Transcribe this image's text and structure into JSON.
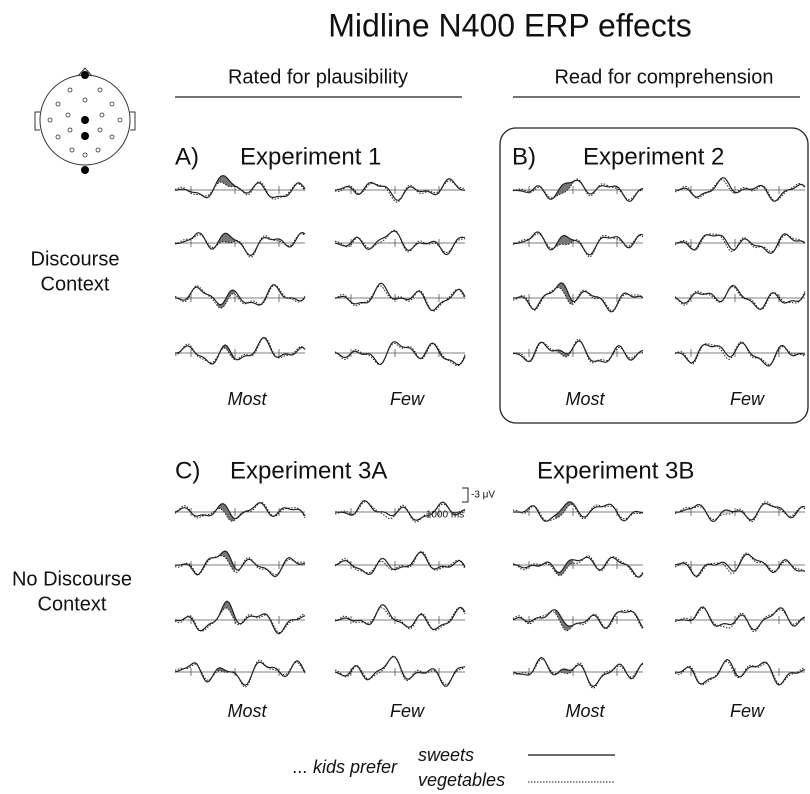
{
  "title": "Midline N400 ERP effects",
  "columns": [
    "Rated for plausibility",
    "Read for comprehension"
  ],
  "rows": [
    [
      "Discourse",
      "Context"
    ],
    [
      "No Discourse",
      "Context"
    ]
  ],
  "panels": [
    {
      "label": "A)",
      "title": "Experiment 1",
      "conditions": [
        "Most",
        "Few"
      ]
    },
    {
      "label": "B)",
      "title": "Experiment 2",
      "conditions": [
        "Most",
        "Few"
      ]
    },
    {
      "label": "C)",
      "title": "Experiment 3A",
      "conditions": [
        "Most",
        "Few"
      ]
    },
    {
      "title": "Experiment 3B",
      "conditions": [
        "Most",
        "Few"
      ]
    }
  ],
  "scale": {
    "amplitude": "-3 μV",
    "time": "1000 ms"
  },
  "legend": {
    "prefix": "... kids prefer",
    "items": [
      "sweets",
      "vegetables"
    ]
  }
}
